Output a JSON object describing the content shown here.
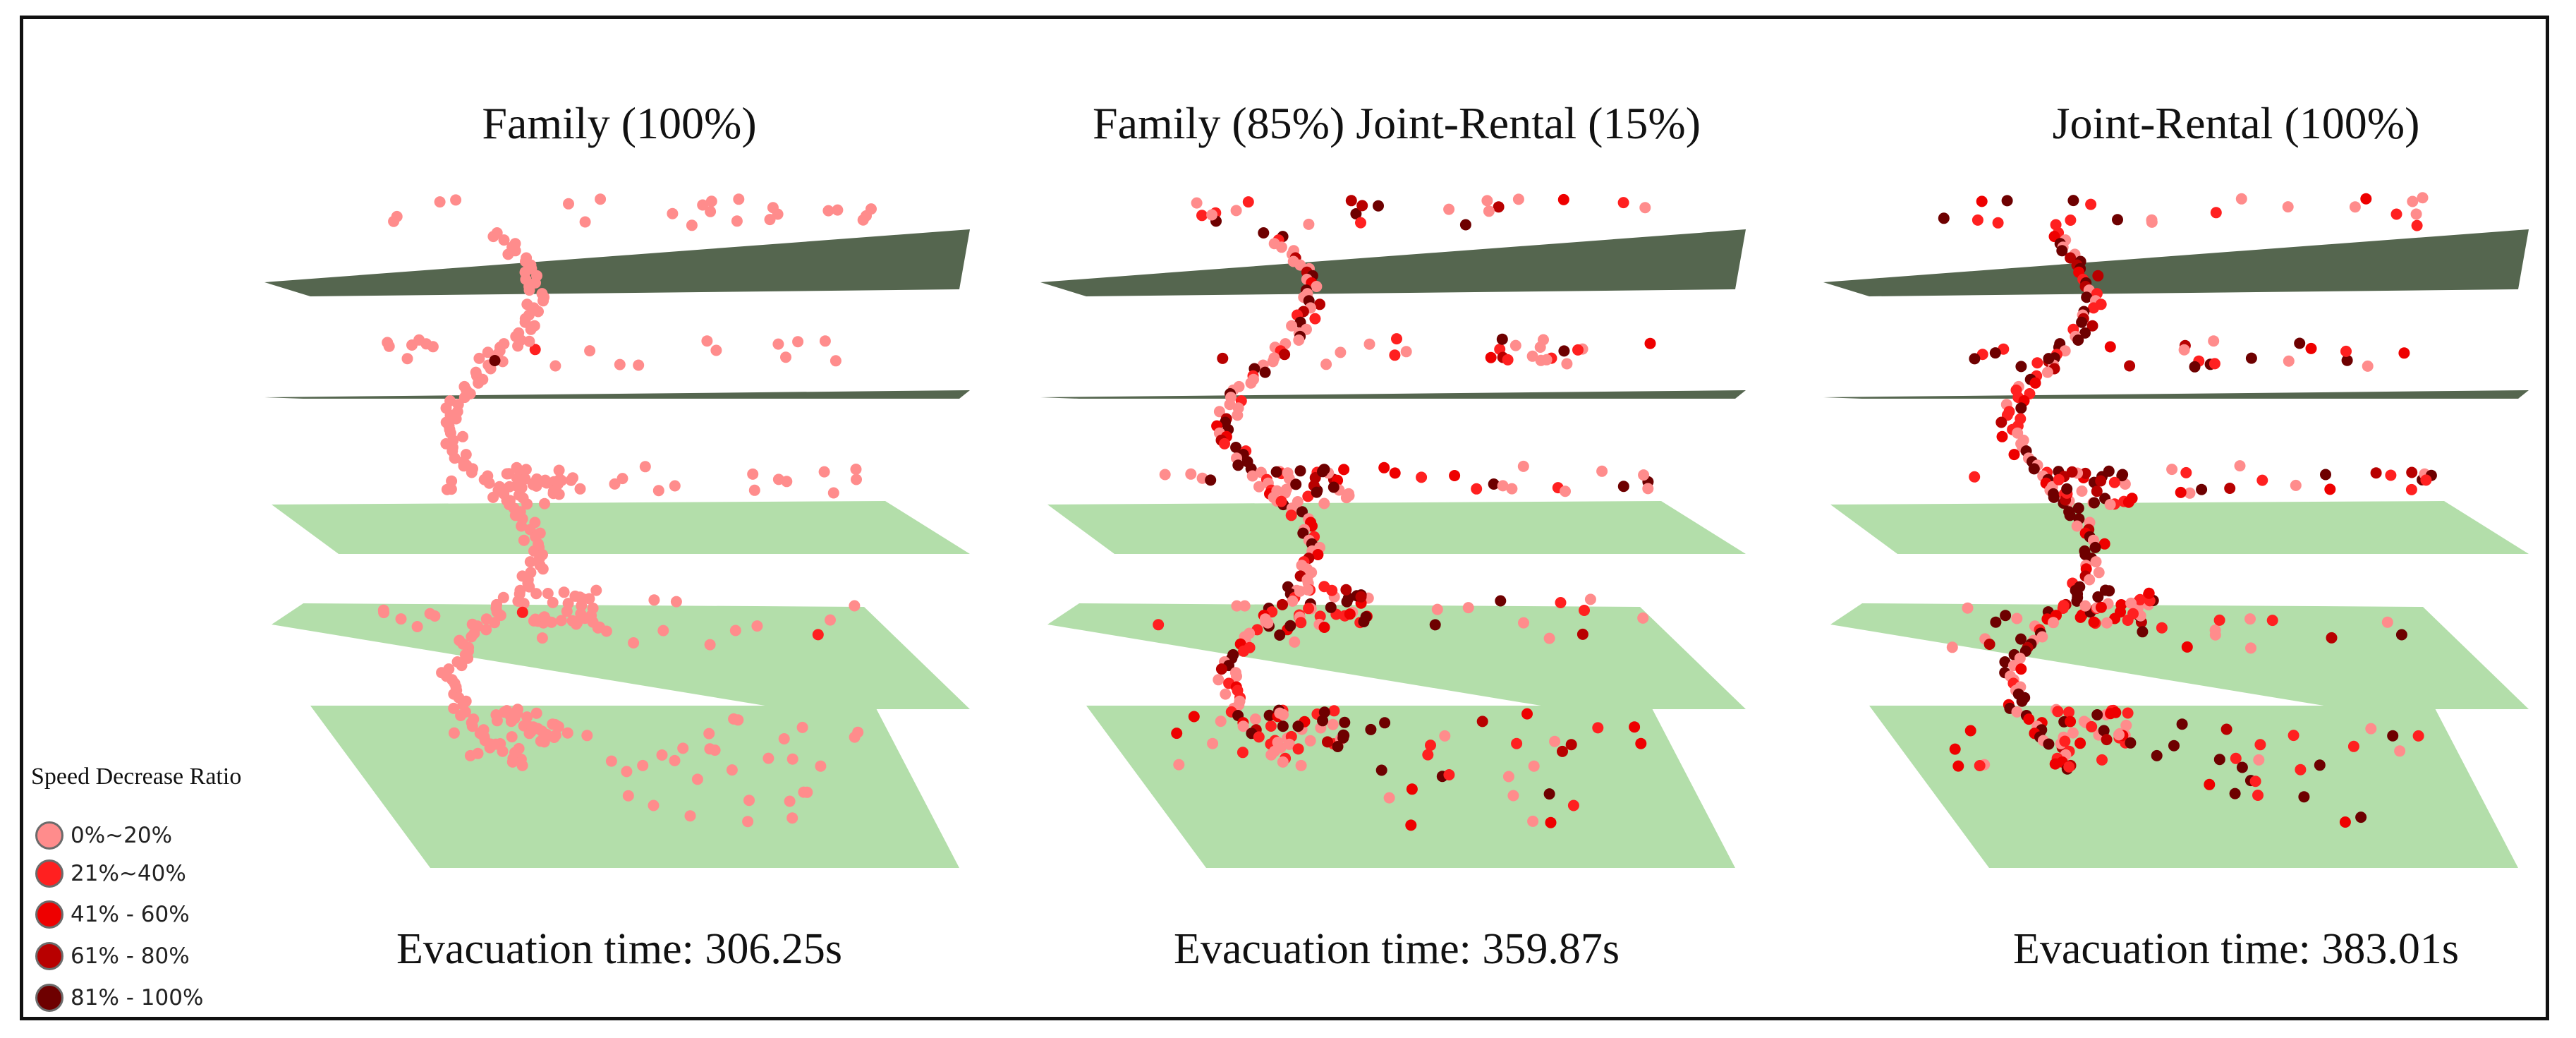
{
  "legend": {
    "title": "Speed Decrease Ratio",
    "items": [
      {
        "label": "0%~20%",
        "color": "#ff8c8c"
      },
      {
        "label": "21%~40%",
        "color": "#ff2020"
      },
      {
        "label": "41% - 60%",
        "color": "#ee0000"
      },
      {
        "label": "61% - 80%",
        "color": "#b80000"
      },
      {
        "label": "81% - 100%",
        "color": "#6e0000"
      }
    ]
  },
  "panels": [
    {
      "title": "Family (100%)",
      "evacuation_time": "Evacuation time: 306.25s",
      "mix": {
        "family": 100,
        "joint_rental": 0
      }
    },
    {
      "title": "Family (85%) Joint-Rental (15%)",
      "evacuation_time": "Evacuation time: 359.87s",
      "mix": {
        "family": 85,
        "joint_rental": 15
      }
    },
    {
      "title": "Joint-Rental (100%)",
      "evacuation_time": "Evacuation time: 383.01s",
      "mix": {
        "family": 0,
        "joint_rental": 100
      }
    }
  ],
  "colors": {
    "upper_floor": "#55664f",
    "lower_floor": "#b3deaa",
    "border": "#111111"
  }
}
